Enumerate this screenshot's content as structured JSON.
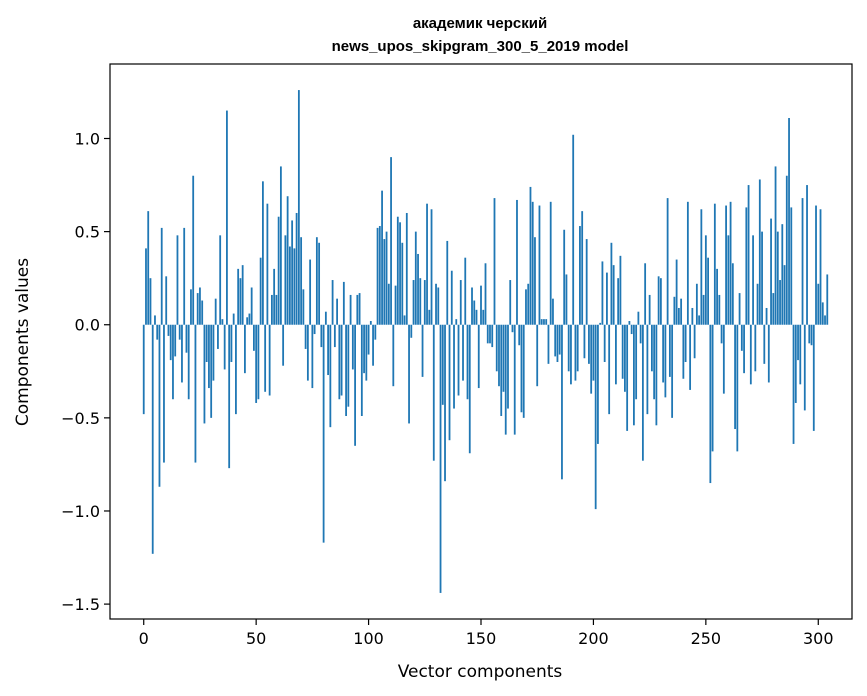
{
  "chart_data": {
    "type": "bar",
    "title_line1": "академик черский",
    "title_line2": "news_upos_skipgram_300_5_2019 model",
    "xlabel": "Vector components",
    "ylabel": "Components values",
    "xlim": [
      -15,
      315
    ],
    "ylim": [
      -1.58,
      1.4
    ],
    "xticks": [
      0,
      50,
      100,
      150,
      200,
      250,
      300
    ],
    "xtick_labels": [
      "0",
      "50",
      "100",
      "150",
      "200",
      "250",
      "300"
    ],
    "yticks": [
      -1.5,
      -1.0,
      -0.5,
      0.0,
      0.5,
      1.0
    ],
    "ytick_labels": [
      "−1.5",
      "−1.0",
      "−0.5",
      "0.0",
      "0.5",
      "1.0"
    ],
    "bar_color": "#1f77b4",
    "values": [
      -0.48,
      0.41,
      0.61,
      0.25,
      -1.23,
      0.05,
      -0.08,
      -0.87,
      0.52,
      -0.74,
      0.26,
      -0.06,
      -0.19,
      -0.4,
      -0.17,
      0.48,
      -0.08,
      -0.31,
      0.52,
      -0.15,
      -0.4,
      0.19,
      0.8,
      -0.74,
      0.17,
      0.2,
      0.13,
      -0.53,
      -0.2,
      -0.34,
      -0.5,
      -0.3,
      0.14,
      -0.13,
      0.48,
      0.03,
      -0.24,
      1.15,
      -0.77,
      -0.2,
      0.06,
      -0.48,
      0.3,
      0.25,
      0.32,
      -0.26,
      0.04,
      0.06,
      0.2,
      -0.14,
      -0.42,
      -0.4,
      0.36,
      0.77,
      -0.36,
      0.65,
      -0.38,
      0.16,
      0.3,
      0.16,
      0.58,
      0.85,
      -0.22,
      0.48,
      0.69,
      0.42,
      0.56,
      0.41,
      0.6,
      1.26,
      0.47,
      0.19,
      -0.13,
      -0.3,
      0.35,
      -0.34,
      -0.05,
      0.47,
      0.44,
      -0.12,
      -1.17,
      0.07,
      -0.27,
      -0.55,
      0.24,
      -0.12,
      0.14,
      -0.4,
      -0.38,
      0.23,
      -0.49,
      -0.44,
      0.16,
      -0.24,
      -0.65,
      0.16,
      0.17,
      -0.49,
      -0.26,
      -0.3,
      -0.16,
      0.02,
      -0.22,
      -0.08,
      0.52,
      0.53,
      0.72,
      0.46,
      0.5,
      0.22,
      0.9,
      -0.33,
      0.21,
      0.58,
      0.55,
      0.44,
      0.05,
      0.6,
      -0.53,
      -0.07,
      0.24,
      0.5,
      0.38,
      0.25,
      -0.28,
      0.24,
      0.65,
      0.08,
      0.62,
      -0.73,
      0.22,
      0.2,
      -1.44,
      -0.43,
      -0.84,
      0.45,
      -0.62,
      0.29,
      -0.45,
      0.03,
      -0.38,
      0.24,
      -0.3,
      0.36,
      -0.4,
      -0.69,
      0.2,
      0.13,
      0.08,
      -0.34,
      0.21,
      0.08,
      0.33,
      -0.1,
      -0.1,
      -0.12,
      0.68,
      -0.25,
      -0.33,
      -0.49,
      -0.36,
      -0.59,
      -0.45,
      0.24,
      -0.04,
      -0.59,
      0.67,
      -0.11,
      -0.47,
      -0.5,
      0.19,
      0.22,
      0.74,
      0.66,
      0.47,
      -0.33,
      0.64,
      0.03,
      0.03,
      0.03,
      -0.21,
      0.66,
      0.14,
      -0.17,
      -0.2,
      -0.16,
      -0.83,
      0.51,
      0.27,
      -0.25,
      -0.32,
      1.02,
      -0.3,
      -0.25,
      0.53,
      0.61,
      -0.18,
      0.46,
      -0.21,
      -0.37,
      -0.3,
      -0.99,
      -0.64,
      0.01,
      0.34,
      -0.2,
      0.28,
      -0.48,
      0.44,
      0.32,
      -0.32,
      0.25,
      0.37,
      -0.29,
      -0.36,
      -0.57,
      0.02,
      -0.05,
      -0.54,
      -0.4,
      0.07,
      -0.1,
      -0.73,
      0.33,
      -0.48,
      0.16,
      -0.25,
      -0.4,
      -0.54,
      0.26,
      0.25,
      -0.31,
      -0.39,
      0.68,
      -0.28,
      -0.5,
      0.15,
      0.35,
      0.09,
      0.14,
      -0.29,
      -0.2,
      0.66,
      -0.35,
      0.09,
      -0.18,
      0.22,
      0.05,
      0.62,
      0.16,
      0.48,
      0.36,
      -0.85,
      -0.68,
      0.65,
      0.3,
      0.16,
      -0.1,
      -0.37,
      0.64,
      0.48,
      0.66,
      0.33,
      -0.56,
      -0.68,
      0.17,
      -0.14,
      -0.26,
      0.63,
      0.75,
      -0.32,
      0.48,
      -0.25,
      0.22,
      0.78,
      0.5,
      -0.21,
      0.09,
      -0.31,
      0.57,
      0.17,
      0.85,
      0.5,
      0.24,
      0.54,
      0.32,
      0.8,
      1.11,
      0.63,
      -0.64,
      -0.42,
      -0.19,
      -0.32,
      0.68,
      -0.46,
      0.75,
      -0.1,
      -0.11,
      -0.57,
      0.64,
      0.22,
      0.62,
      0.12,
      0.05,
      0.27
    ]
  }
}
